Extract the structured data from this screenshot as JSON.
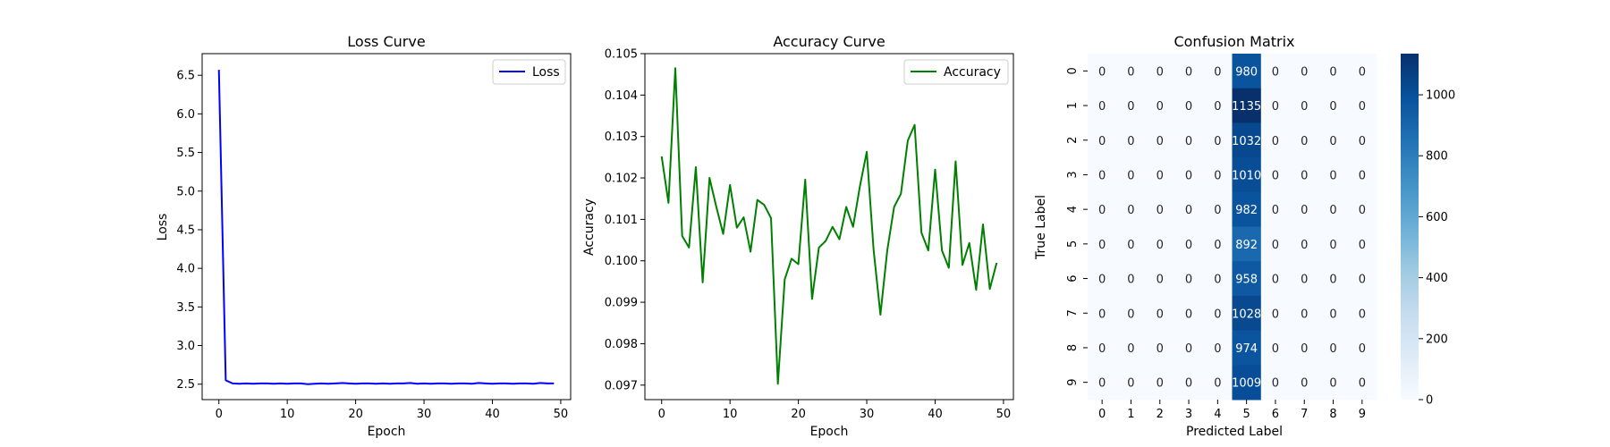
{
  "colors": {
    "loss_line": "#0000ff",
    "accuracy_line": "#008000",
    "axis": "#000000",
    "cmap": "Blues",
    "heat_low": "#f7fbff",
    "heat_high": "#08306b",
    "cell_text_dark": "#262626",
    "cell_text_light": "#ffffff"
  },
  "chart_data": [
    {
      "type": "line",
      "title": "Loss Curve",
      "xlabel": "Epoch",
      "ylabel": "Loss",
      "xlim": [
        -2.45,
        51.45
      ],
      "ylim": [
        2.3,
        6.78
      ],
      "xticks": [
        0,
        10,
        20,
        30,
        40,
        50
      ],
      "xtick_labels": [
        "0",
        "10",
        "20",
        "30",
        "40",
        "50"
      ],
      "yticks": [
        2.5,
        3.0,
        3.5,
        4.0,
        4.5,
        5.0,
        5.5,
        6.0,
        6.5
      ],
      "ytick_labels": [
        "2.5",
        "3.0",
        "3.5",
        "4.0",
        "4.5",
        "5.0",
        "5.5",
        "6.0",
        "6.5"
      ],
      "legend_location": "upper right",
      "grid": false,
      "series": [
        {
          "name": "Loss",
          "x": [
            0,
            1,
            2,
            3,
            4,
            5,
            6,
            7,
            8,
            9,
            10,
            11,
            12,
            13,
            14,
            15,
            16,
            17,
            18,
            19,
            20,
            21,
            22,
            23,
            24,
            25,
            26,
            27,
            28,
            29,
            30,
            31,
            32,
            33,
            34,
            35,
            36,
            37,
            38,
            39,
            40,
            41,
            42,
            43,
            44,
            45,
            46,
            47,
            48,
            49
          ],
          "y": [
            6.57,
            2.55,
            2.51,
            2.505,
            2.51,
            2.505,
            2.51,
            2.51,
            2.505,
            2.51,
            2.505,
            2.51,
            2.51,
            2.5,
            2.505,
            2.51,
            2.505,
            2.51,
            2.515,
            2.51,
            2.505,
            2.51,
            2.51,
            2.505,
            2.51,
            2.505,
            2.51,
            2.51,
            2.515,
            2.505,
            2.51,
            2.505,
            2.51,
            2.51,
            2.505,
            2.51,
            2.51,
            2.505,
            2.515,
            2.51,
            2.505,
            2.51,
            2.51,
            2.505,
            2.51,
            2.51,
            2.505,
            2.515,
            2.51,
            2.51
          ]
        }
      ]
    },
    {
      "type": "line",
      "title": "Accuracy Curve",
      "xlabel": "Epoch",
      "ylabel": "Accuracy",
      "xlim": [
        -2.45,
        51.45
      ],
      "ylim": [
        0.09665,
        0.105
      ],
      "xticks": [
        0,
        10,
        20,
        30,
        40,
        50
      ],
      "xtick_labels": [
        "0",
        "10",
        "20",
        "30",
        "40",
        "50"
      ],
      "yticks": [
        0.097,
        0.098,
        0.099,
        0.1,
        0.101,
        0.102,
        0.103,
        0.104,
        0.105
      ],
      "ytick_labels": [
        "0.097",
        "0.098",
        "0.099",
        "0.100",
        "0.101",
        "0.102",
        "0.103",
        "0.104",
        "0.105"
      ],
      "legend_location": "upper right",
      "grid": false,
      "series": [
        {
          "name": "Accuracy",
          "x": [
            0,
            1,
            2,
            3,
            4,
            5,
            6,
            7,
            8,
            9,
            10,
            11,
            12,
            13,
            14,
            15,
            16,
            17,
            18,
            19,
            20,
            21,
            22,
            23,
            24,
            25,
            26,
            27,
            28,
            29,
            30,
            31,
            32,
            33,
            34,
            35,
            36,
            37,
            38,
            39,
            40,
            41,
            42,
            43,
            44,
            45,
            46,
            47,
            48,
            49
          ],
          "y": [
            0.10252,
            0.1014,
            0.10465,
            0.1006,
            0.10032,
            0.10226,
            0.09948,
            0.102,
            0.1013,
            0.10065,
            0.10183,
            0.1008,
            0.10105,
            0.10022,
            0.10147,
            0.10135,
            0.10103,
            0.09703,
            0.09955,
            0.10005,
            0.09992,
            0.10196,
            0.09908,
            0.10032,
            0.10048,
            0.10082,
            0.10052,
            0.1013,
            0.10082,
            0.1018,
            0.10263,
            0.10027,
            0.0987,
            0.10025,
            0.1013,
            0.10162,
            0.1029,
            0.10328,
            0.10068,
            0.10025,
            0.1022,
            0.10025,
            0.09983,
            0.1024,
            0.0999,
            0.10043,
            0.0993,
            0.10088,
            0.09932,
            0.09995
          ]
        }
      ]
    },
    {
      "type": "heatmap",
      "title": "Confusion Matrix",
      "xlabel": "Predicted Label",
      "ylabel": "True Label",
      "x_categories": [
        "0",
        "1",
        "2",
        "3",
        "4",
        "5",
        "6",
        "7",
        "8",
        "9"
      ],
      "y_categories": [
        "0",
        "1",
        "2",
        "3",
        "4",
        "5",
        "6",
        "7",
        "8",
        "9"
      ],
      "values": [
        [
          0,
          0,
          0,
          0,
          0,
          980,
          0,
          0,
          0,
          0
        ],
        [
          0,
          0,
          0,
          0,
          0,
          1135,
          0,
          0,
          0,
          0
        ],
        [
          0,
          0,
          0,
          0,
          0,
          1032,
          0,
          0,
          0,
          0
        ],
        [
          0,
          0,
          0,
          0,
          0,
          1010,
          0,
          0,
          0,
          0
        ],
        [
          0,
          0,
          0,
          0,
          0,
          982,
          0,
          0,
          0,
          0
        ],
        [
          0,
          0,
          0,
          0,
          0,
          892,
          0,
          0,
          0,
          0
        ],
        [
          0,
          0,
          0,
          0,
          0,
          958,
          0,
          0,
          0,
          0
        ],
        [
          0,
          0,
          0,
          0,
          0,
          1028,
          0,
          0,
          0,
          0
        ],
        [
          0,
          0,
          0,
          0,
          0,
          974,
          0,
          0,
          0,
          0
        ],
        [
          0,
          0,
          0,
          0,
          0,
          1009,
          0,
          0,
          0,
          0
        ]
      ],
      "colorbar_range": [
        0,
        1135
      ],
      "colorbar_ticks": [
        0,
        200,
        400,
        600,
        800,
        1000
      ],
      "colorbar_tick_labels": [
        "0",
        "200",
        "400",
        "600",
        "800",
        "1000"
      ]
    }
  ]
}
